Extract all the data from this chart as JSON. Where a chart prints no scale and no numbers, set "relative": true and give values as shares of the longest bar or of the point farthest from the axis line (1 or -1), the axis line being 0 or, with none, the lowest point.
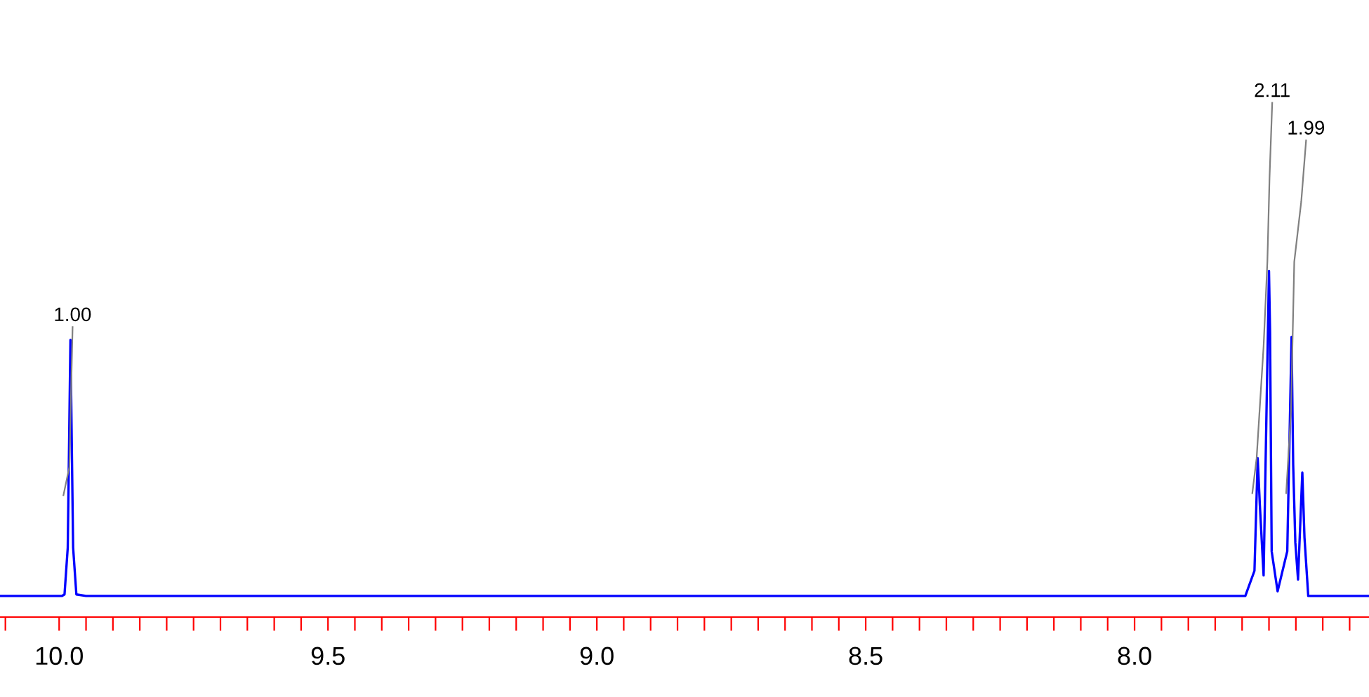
{
  "chart_data": {
    "type": "line",
    "relative": true,
    "xlim": [
      10.11,
      7.564
    ],
    "xticks": [
      {
        "value": 10.1,
        "label": null
      },
      {
        "value": 10.0,
        "label": "10.0"
      },
      {
        "value": 9.95,
        "label": null
      },
      {
        "value": 9.9,
        "label": null
      },
      {
        "value": 9.85,
        "label": null
      },
      {
        "value": 9.8,
        "label": null
      },
      {
        "value": 9.75,
        "label": null
      },
      {
        "value": 9.7,
        "label": null
      },
      {
        "value": 9.65,
        "label": null
      },
      {
        "value": 9.6,
        "label": null
      },
      {
        "value": 9.55,
        "label": null
      },
      {
        "value": 9.5,
        "label": "9.5"
      },
      {
        "value": 9.45,
        "label": null
      },
      {
        "value": 9.4,
        "label": null
      },
      {
        "value": 9.35,
        "label": null
      },
      {
        "value": 9.3,
        "label": null
      },
      {
        "value": 9.25,
        "label": null
      },
      {
        "value": 9.2,
        "label": null
      },
      {
        "value": 9.15,
        "label": null
      },
      {
        "value": 9.1,
        "label": null
      },
      {
        "value": 9.05,
        "label": null
      },
      {
        "value": 9.0,
        "label": "9.0"
      },
      {
        "value": 8.95,
        "label": null
      },
      {
        "value": 8.9,
        "label": null
      },
      {
        "value": 8.85,
        "label": null
      },
      {
        "value": 8.8,
        "label": null
      },
      {
        "value": 8.75,
        "label": null
      },
      {
        "value": 8.7,
        "label": null
      },
      {
        "value": 8.65,
        "label": null
      },
      {
        "value": 8.6,
        "label": null
      },
      {
        "value": 8.55,
        "label": null
      },
      {
        "value": 8.5,
        "label": "8.5"
      },
      {
        "value": 8.45,
        "label": null
      },
      {
        "value": 8.4,
        "label": null
      },
      {
        "value": 8.35,
        "label": null
      },
      {
        "value": 8.3,
        "label": null
      },
      {
        "value": 8.25,
        "label": null
      },
      {
        "value": 8.2,
        "label": null
      },
      {
        "value": 8.15,
        "label": null
      },
      {
        "value": 8.1,
        "label": null
      },
      {
        "value": 8.05,
        "label": null
      },
      {
        "value": 8.0,
        "label": "8.0"
      },
      {
        "value": 7.95,
        "label": null
      },
      {
        "value": 7.9,
        "label": null
      },
      {
        "value": 7.85,
        "label": null
      },
      {
        "value": 7.8,
        "label": null
      },
      {
        "value": 7.75,
        "label": null
      },
      {
        "value": 7.7,
        "label": null
      },
      {
        "value": 7.65,
        "label": null
      },
      {
        "value": 7.6,
        "label": null
      }
    ],
    "grid": false,
    "series": [
      {
        "color": "#0000ff",
        "x": [
          10.11,
          9.995,
          9.99,
          9.984,
          9.979,
          9.974,
          9.968,
          9.95,
          7.794,
          7.777,
          7.771,
          7.767,
          7.76,
          7.75,
          7.748,
          7.745,
          7.734,
          7.716,
          7.708,
          7.705,
          7.701,
          7.696,
          7.688,
          7.684,
          7.677,
          7.564
        ],
        "values": [
          0.041,
          0.041,
          0.044,
          0.135,
          0.539,
          0.135,
          0.044,
          0.041,
          0.041,
          0.09,
          0.309,
          0.218,
          0.081,
          0.673,
          0.554,
          0.128,
          0.05,
          0.128,
          0.545,
          0.296,
          0.145,
          0.073,
          0.281,
          0.155,
          0.041,
          0.041
        ]
      },
      {
        "color": "#808080",
        "x": [
          9.992,
          9.981,
          9.975
        ],
        "values": [
          0.237,
          0.292,
          0.564
        ]
      },
      {
        "color": "#808080",
        "x": [
          7.781,
          7.773,
          7.76,
          7.753,
          7.749,
          7.744
        ],
        "values": [
          0.241,
          0.309,
          0.527,
          0.691,
          0.854,
          1.0
        ]
      },
      {
        "color": "#808080",
        "x": [
          7.718,
          7.709,
          7.703,
          7.69,
          7.681
        ],
        "values": [
          0.241,
          0.401,
          0.691,
          0.808,
          0.927
        ]
      }
    ],
    "annotations": [
      {
        "text": "1.00",
        "x": 9.975,
        "y": 0.564
      },
      {
        "text": "2.11",
        "x": 7.744,
        "y": 1.0
      },
      {
        "text": "1.99",
        "x": 7.681,
        "y": 0.927
      }
    ]
  }
}
